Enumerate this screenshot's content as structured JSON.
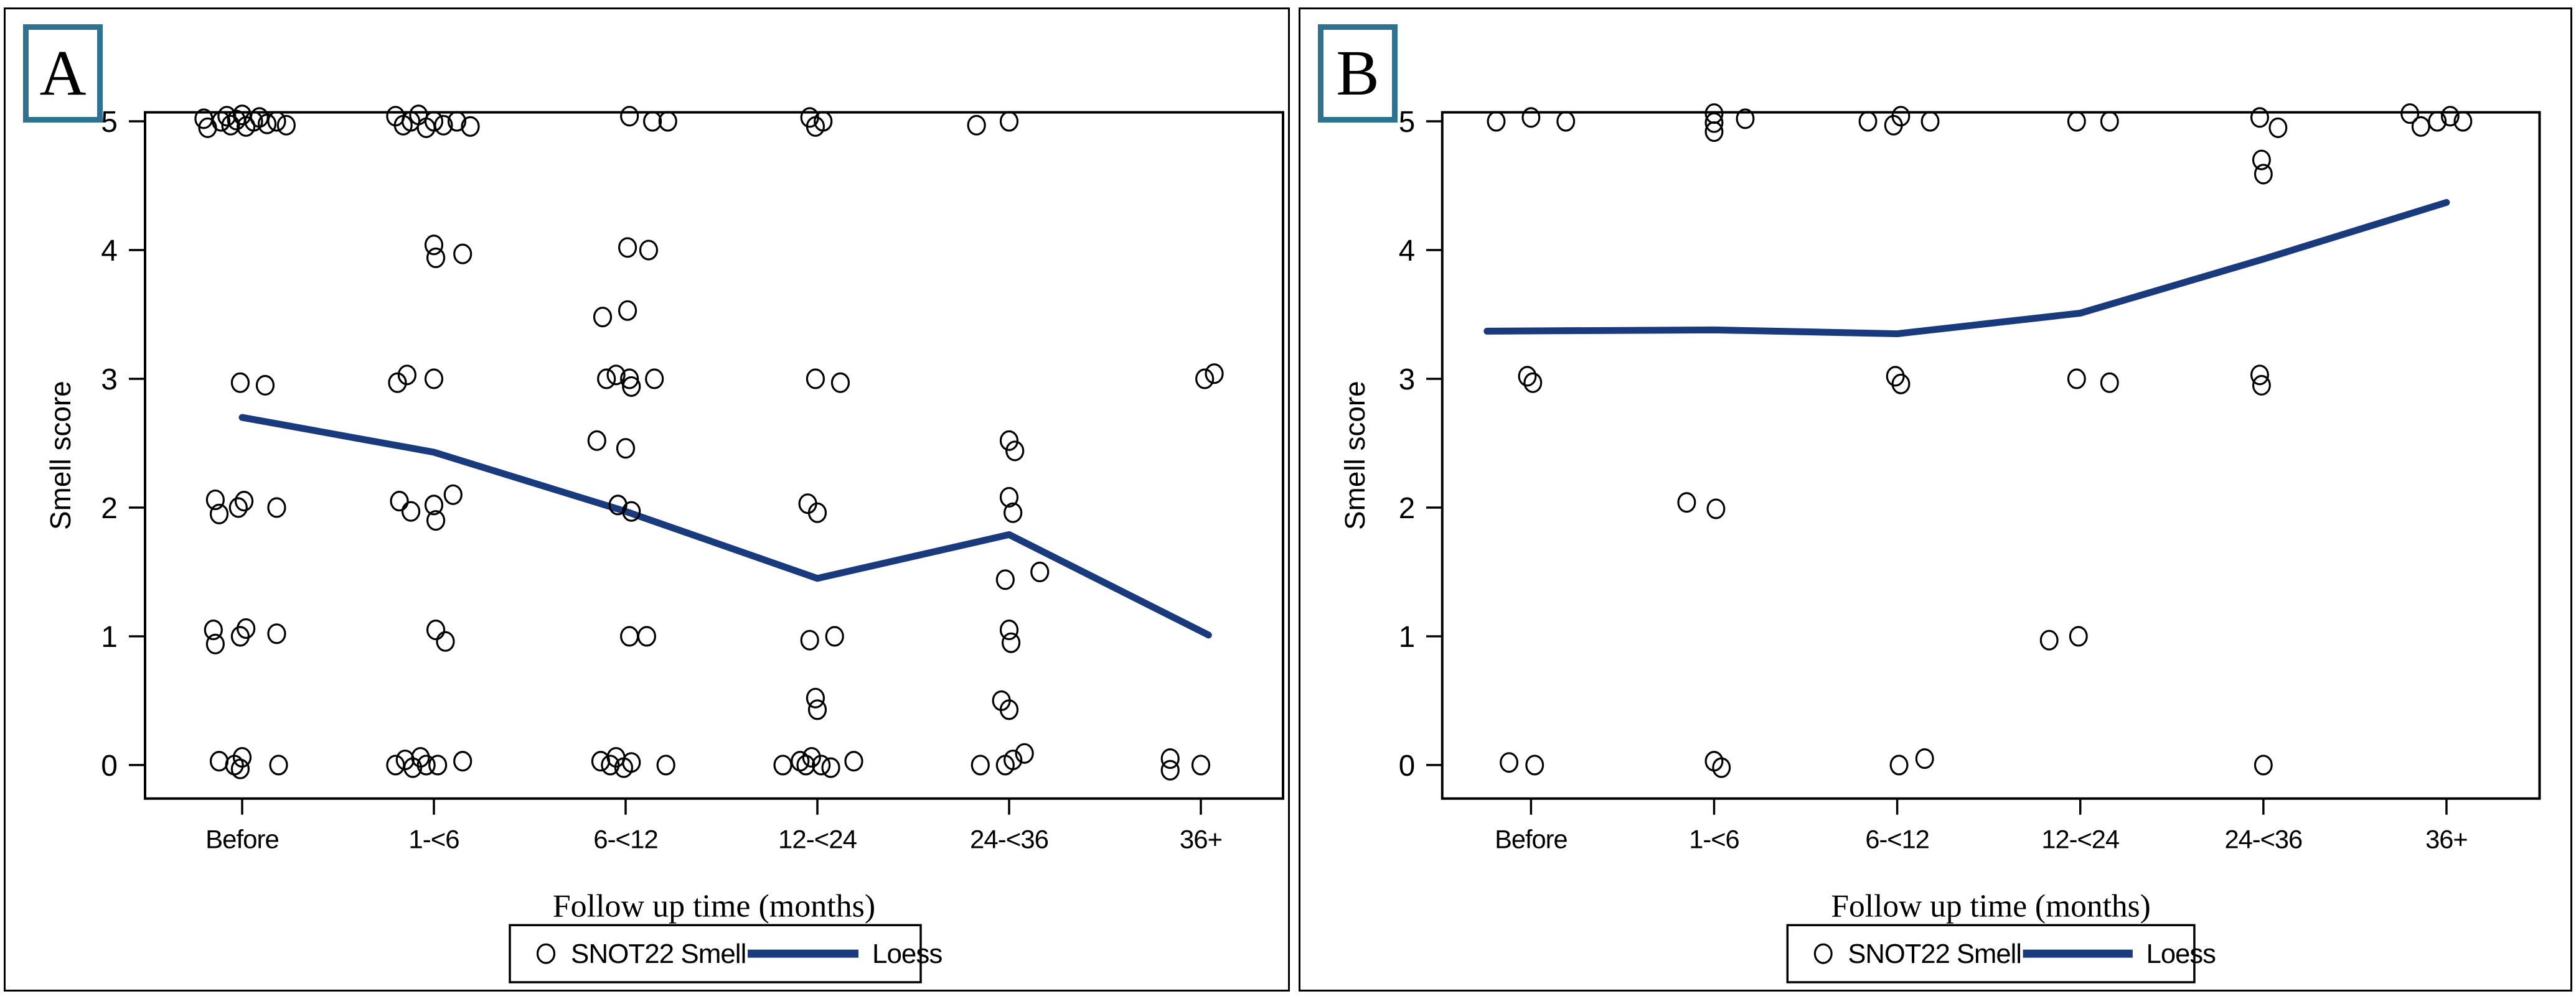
{
  "styles": {
    "loess_color": "#1a3a7e",
    "panel_label_border": "#2e7191",
    "marker_color": "#000000",
    "background": "#ffffff"
  },
  "chart_data": [
    {
      "type": "scatter",
      "panel_label": "A",
      "xlabel": "Follow up time (months)",
      "ylabel": "Smell score",
      "x_categories": [
        "Before",
        "1-<6",
        "6-<12",
        "12-<24",
        "24-<36",
        "36+"
      ],
      "y_ticks": [
        0,
        1,
        2,
        3,
        4,
        5
      ],
      "ylim": [
        -0.27,
        5.07
      ],
      "grid": false,
      "x_units": "category axis: 1=Before ... 6=36+, fractional offsets = jitter",
      "legend": {
        "position": "bottom-center",
        "marker_label": "SNOT22 Smell",
        "line_label": "Loess"
      },
      "series": [
        {
          "name": "SNOT22 Smell",
          "kind": "scatter",
          "marker": "open-circle",
          "color": "#000000",
          "points": [
            [
              0.8,
              5.02
            ],
            [
              0.82,
              4.95
            ],
            [
              0.89,
              5.0
            ],
            [
              0.92,
              5.04
            ],
            [
              0.94,
              4.97
            ],
            [
              0.97,
              5.01
            ],
            [
              1.0,
              5.05
            ],
            [
              1.02,
              4.96
            ],
            [
              1.06,
              5.0
            ],
            [
              1.09,
              5.03
            ],
            [
              1.13,
              4.98
            ],
            [
              1.18,
              5.0
            ],
            [
              1.23,
              4.97
            ],
            [
              1.8,
              5.04
            ],
            [
              1.84,
              4.97
            ],
            [
              1.88,
              5.0
            ],
            [
              1.92,
              5.05
            ],
            [
              1.96,
              4.95
            ],
            [
              2.0,
              5.0
            ],
            [
              2.05,
              4.97
            ],
            [
              2.12,
              5.0
            ],
            [
              2.19,
              4.96
            ],
            [
              3.02,
              5.04
            ],
            [
              3.14,
              5.0
            ],
            [
              3.22,
              5.0
            ],
            [
              3.96,
              5.03
            ],
            [
              3.99,
              4.96
            ],
            [
              4.03,
              5.0
            ],
            [
              4.83,
              4.97
            ],
            [
              5.0,
              5.0
            ],
            [
              2.0,
              4.04
            ],
            [
              2.01,
              3.94
            ],
            [
              2.15,
              3.97
            ],
            [
              3.01,
              4.02
            ],
            [
              3.12,
              4.0
            ],
            [
              2.88,
              3.48
            ],
            [
              3.01,
              3.53
            ],
            [
              0.99,
              2.97
            ],
            [
              1.12,
              2.95
            ],
            [
              1.81,
              2.97
            ],
            [
              1.86,
              3.03
            ],
            [
              2.0,
              3.0
            ],
            [
              2.9,
              3.0
            ],
            [
              2.95,
              3.03
            ],
            [
              3.02,
              3.0
            ],
            [
              3.03,
              2.94
            ],
            [
              3.15,
              3.0
            ],
            [
              3.99,
              3.0
            ],
            [
              4.12,
              2.97
            ],
            [
              6.02,
              3.0
            ],
            [
              6.07,
              3.04
            ],
            [
              2.85,
              2.52
            ],
            [
              3.0,
              2.46
            ],
            [
              5.0,
              2.52
            ],
            [
              5.03,
              2.44
            ],
            [
              0.86,
              2.06
            ],
            [
              0.88,
              1.95
            ],
            [
              0.98,
              2.0
            ],
            [
              1.01,
              2.05
            ],
            [
              1.18,
              2.0
            ],
            [
              1.82,
              2.05
            ],
            [
              1.88,
              1.97
            ],
            [
              2.0,
              2.02
            ],
            [
              2.01,
              1.9
            ],
            [
              2.1,
              2.1
            ],
            [
              2.96,
              2.02
            ],
            [
              3.03,
              1.97
            ],
            [
              3.95,
              2.03
            ],
            [
              4.0,
              1.96
            ],
            [
              5.0,
              2.08
            ],
            [
              5.02,
              1.96
            ],
            [
              4.98,
              1.44
            ],
            [
              5.16,
              1.5
            ],
            [
              0.85,
              1.05
            ],
            [
              0.86,
              0.94
            ],
            [
              0.99,
              1.0
            ],
            [
              1.02,
              1.06
            ],
            [
              1.18,
              1.02
            ],
            [
              2.01,
              1.05
            ],
            [
              2.06,
              0.96
            ],
            [
              3.02,
              1.0
            ],
            [
              3.11,
              1.0
            ],
            [
              3.96,
              0.97
            ],
            [
              4.09,
              1.0
            ],
            [
              5.0,
              1.05
            ],
            [
              5.01,
              0.95
            ],
            [
              3.99,
              0.52
            ],
            [
              4.0,
              0.43
            ],
            [
              4.96,
              0.5
            ],
            [
              5.0,
              0.43
            ],
            [
              0.88,
              0.03
            ],
            [
              0.96,
              0.0
            ],
            [
              0.99,
              -0.03
            ],
            [
              1.0,
              0.06
            ],
            [
              1.19,
              0.0
            ],
            [
              1.8,
              0.0
            ],
            [
              1.85,
              0.04
            ],
            [
              1.89,
              -0.02
            ],
            [
              1.93,
              0.06
            ],
            [
              1.96,
              0.0
            ],
            [
              2.02,
              0.0
            ],
            [
              2.15,
              0.03
            ],
            [
              2.87,
              0.03
            ],
            [
              2.92,
              0.0
            ],
            [
              2.95,
              0.06
            ],
            [
              2.99,
              -0.02
            ],
            [
              3.03,
              0.02
            ],
            [
              3.21,
              0.0
            ],
            [
              3.82,
              0.0
            ],
            [
              3.91,
              0.03
            ],
            [
              3.94,
              0.0
            ],
            [
              3.97,
              0.06
            ],
            [
              4.02,
              0.0
            ],
            [
              4.07,
              -0.02
            ],
            [
              4.19,
              0.03
            ],
            [
              4.85,
              0.0
            ],
            [
              4.98,
              0.0
            ],
            [
              5.02,
              0.04
            ],
            [
              5.08,
              0.09
            ],
            [
              5.84,
              0.05
            ],
            [
              5.84,
              -0.04
            ],
            [
              6.0,
              0.0
            ]
          ]
        },
        {
          "name": "Loess",
          "kind": "line",
          "color": "#1a3a7e",
          "points": [
            [
              1.0,
              2.7
            ],
            [
              2.0,
              2.43
            ],
            [
              3.0,
              1.97
            ],
            [
              4.0,
              1.45
            ],
            [
              5.0,
              1.79
            ],
            [
              6.04,
              1.01
            ]
          ]
        }
      ]
    },
    {
      "type": "scatter",
      "panel_label": "B",
      "xlabel": "Follow up time (months)",
      "ylabel": "Smell score",
      "x_categories": [
        "Before",
        "1-<6",
        "6-<12",
        "12-<24",
        "24-<36",
        "36+"
      ],
      "y_ticks": [
        0,
        1,
        2,
        3,
        4,
        5
      ],
      "ylim": [
        -0.27,
        5.07
      ],
      "grid": false,
      "x_units": "category axis: 1=Before ... 6=36+, fractional offsets = jitter",
      "legend": {
        "position": "bottom-center",
        "marker_label": "SNOT22 Smell",
        "line_label": "Loess"
      },
      "series": [
        {
          "name": "SNOT22 Smell",
          "kind": "scatter",
          "marker": "open-circle",
          "color": "#000000",
          "points": [
            [
              0.81,
              5.0
            ],
            [
              1.0,
              5.03
            ],
            [
              1.19,
              5.0
            ],
            [
              2.0,
              5.06
            ],
            [
              2.0,
              4.99
            ],
            [
              2.0,
              4.92
            ],
            [
              2.17,
              5.02
            ],
            [
              2.84,
              5.0
            ],
            [
              2.98,
              4.97
            ],
            [
              3.02,
              5.04
            ],
            [
              3.18,
              5.0
            ],
            [
              3.98,
              5.0
            ],
            [
              4.16,
              5.0
            ],
            [
              4.98,
              5.03
            ],
            [
              5.08,
              4.95
            ],
            [
              5.8,
              5.06
            ],
            [
              5.86,
              4.96
            ],
            [
              5.95,
              5.0
            ],
            [
              6.02,
              5.04
            ],
            [
              6.09,
              5.0
            ],
            [
              4.99,
              4.7
            ],
            [
              5.0,
              4.59
            ],
            [
              0.98,
              3.02
            ],
            [
              1.01,
              2.97
            ],
            [
              2.99,
              3.02
            ],
            [
              3.02,
              2.96
            ],
            [
              3.98,
              3.0
            ],
            [
              4.16,
              2.97
            ],
            [
              4.98,
              3.03
            ],
            [
              4.99,
              2.95
            ],
            [
              1.85,
              2.04
            ],
            [
              2.01,
              1.99
            ],
            [
              3.83,
              0.97
            ],
            [
              3.99,
              1.0
            ],
            [
              0.88,
              0.02
            ],
            [
              1.02,
              0.0
            ],
            [
              2.0,
              0.03
            ],
            [
              2.04,
              -0.02
            ],
            [
              3.01,
              0.0
            ],
            [
              3.15,
              0.05
            ],
            [
              5.0,
              0.0
            ]
          ]
        },
        {
          "name": "Loess",
          "kind": "line",
          "color": "#1a3a7e",
          "points": [
            [
              0.76,
              3.37
            ],
            [
              2.0,
              3.38
            ],
            [
              3.0,
              3.35
            ],
            [
              4.0,
              3.51
            ],
            [
              5.0,
              3.93
            ],
            [
              6.0,
              4.37
            ]
          ]
        }
      ]
    }
  ]
}
